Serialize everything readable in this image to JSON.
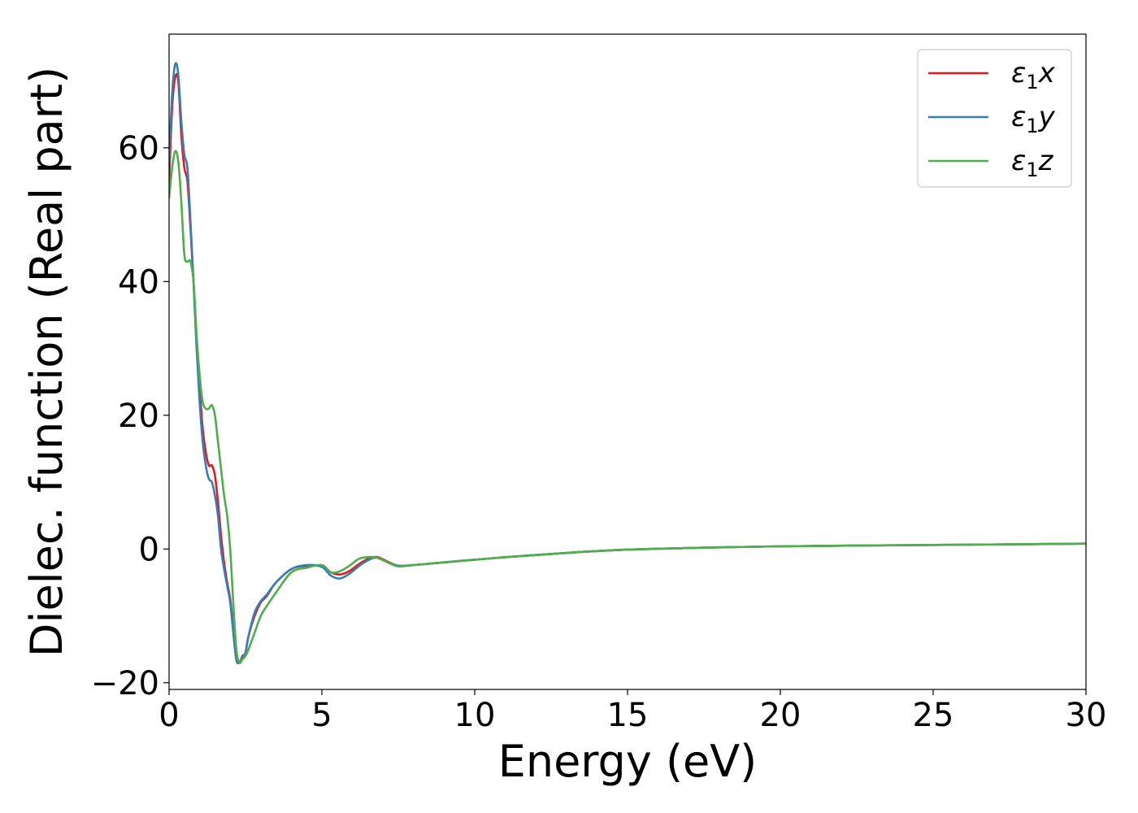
{
  "chart_data": {
    "type": "line",
    "title": "",
    "xlabel": "Energy (eV)",
    "ylabel": "Dielec. function (Real part)",
    "xlim": [
      0,
      30
    ],
    "ylim": [
      -21,
      77
    ],
    "xticks": [
      0,
      5,
      10,
      15,
      20,
      25,
      30
    ],
    "xtick_labels": [
      "0",
      "5",
      "10",
      "15",
      "20",
      "25",
      "30"
    ],
    "yticks": [
      -20,
      0,
      20,
      40,
      60
    ],
    "ytick_labels": [
      "−20",
      "0",
      "20",
      "40",
      "60"
    ],
    "grid": false,
    "legend_position": "top-right",
    "series": [
      {
        "name": "ε₁x",
        "legend_base": "ε",
        "legend_sub": "1",
        "legend_suffix": "x",
        "color": "#e41a1c",
        "x": [
          0,
          0.1,
          0.2,
          0.3,
          0.4,
          0.5,
          0.6,
          0.7,
          0.8,
          0.9,
          1.0,
          1.1,
          1.2,
          1.3,
          1.4,
          1.5,
          1.6,
          1.7,
          1.8,
          1.9,
          2.0,
          2.1,
          2.2,
          2.3,
          2.4,
          2.5,
          2.6,
          2.8,
          3.0,
          3.2,
          3.5,
          4.0,
          4.5,
          5.0,
          5.3,
          5.6,
          5.9,
          6.2,
          6.5,
          6.8,
          7.2,
          7.5,
          8.0,
          9.0,
          10,
          12,
          15,
          20,
          25,
          30
        ],
        "y": [
          55,
          66,
          70.5,
          70,
          62,
          57,
          55,
          48,
          40,
          31,
          24,
          18,
          14.5,
          12.5,
          12.5,
          11,
          7,
          2,
          -2,
          -5,
          -7.5,
          -12,
          -16.5,
          -17,
          -16,
          -15.5,
          -13,
          -10,
          -8,
          -7,
          -5,
          -3,
          -2.5,
          -2.5,
          -3.5,
          -3.8,
          -3.3,
          -2.3,
          -1.5,
          -1.2,
          -2,
          -2.5,
          -2.4,
          -2,
          -1.6,
          -0.9,
          -0.1,
          0.4,
          0.6,
          0.8
        ]
      },
      {
        "name": "ε₁y",
        "legend_base": "ε",
        "legend_sub": "1",
        "legend_suffix": "y",
        "color": "#377eb8",
        "x": [
          0,
          0.1,
          0.2,
          0.3,
          0.4,
          0.5,
          0.6,
          0.7,
          0.8,
          0.9,
          1.0,
          1.1,
          1.2,
          1.3,
          1.4,
          1.5,
          1.6,
          1.7,
          1.8,
          1.9,
          2.0,
          2.1,
          2.2,
          2.3,
          2.4,
          2.5,
          2.6,
          2.8,
          3.0,
          3.2,
          3.5,
          4.0,
          4.5,
          5.0,
          5.3,
          5.6,
          5.9,
          6.2,
          6.5,
          6.8,
          7.2,
          7.5,
          8.0,
          9.0,
          10,
          12,
          15,
          20,
          25,
          30
        ],
        "y": [
          58,
          68,
          72.5,
          71,
          64,
          59,
          57,
          49,
          40,
          30,
          22,
          16,
          12.5,
          10.5,
          10,
          8,
          5,
          0,
          -3,
          -5.5,
          -8,
          -12.5,
          -16.5,
          -17,
          -16.2,
          -15.5,
          -13,
          -9.5,
          -7.8,
          -6.8,
          -5,
          -3,
          -2.4,
          -2.7,
          -4,
          -4.4,
          -3.7,
          -2.6,
          -1.7,
          -1.3,
          -2.1,
          -2.5,
          -2.4,
          -2,
          -1.6,
          -0.9,
          -0.1,
          0.4,
          0.6,
          0.8
        ]
      },
      {
        "name": "ε₁z",
        "legend_base": "ε",
        "legend_sub": "1",
        "legend_suffix": "z",
        "color": "#4daf4a",
        "x": [
          0,
          0.1,
          0.2,
          0.3,
          0.4,
          0.5,
          0.6,
          0.7,
          0.8,
          0.9,
          1.0,
          1.1,
          1.2,
          1.3,
          1.4,
          1.5,
          1.6,
          1.7,
          1.8,
          1.9,
          2.0,
          2.1,
          2.2,
          2.3,
          2.4,
          2.5,
          2.6,
          2.8,
          3.0,
          3.2,
          3.5,
          4.0,
          4.5,
          5.0,
          5.3,
          5.6,
          5.9,
          6.2,
          6.5,
          6.8,
          7.2,
          7.5,
          8.0,
          9.0,
          10,
          12,
          15,
          20,
          25,
          30
        ],
        "y": [
          52.5,
          57,
          59.5,
          58,
          52,
          44,
          43,
          43,
          40,
          32,
          26,
          22,
          21,
          21,
          21.5,
          20,
          16,
          12,
          8,
          5,
          0,
          -8,
          -15,
          -17,
          -16.5,
          -16,
          -15,
          -12.5,
          -10,
          -8.5,
          -6.5,
          -3.5,
          -2.8,
          -2.4,
          -3.5,
          -3.3,
          -2.5,
          -1.5,
          -1.2,
          -1.3,
          -2.1,
          -2.6,
          -2.4,
          -2,
          -1.6,
          -0.9,
          -0.1,
          0.4,
          0.6,
          0.8
        ]
      }
    ]
  }
}
